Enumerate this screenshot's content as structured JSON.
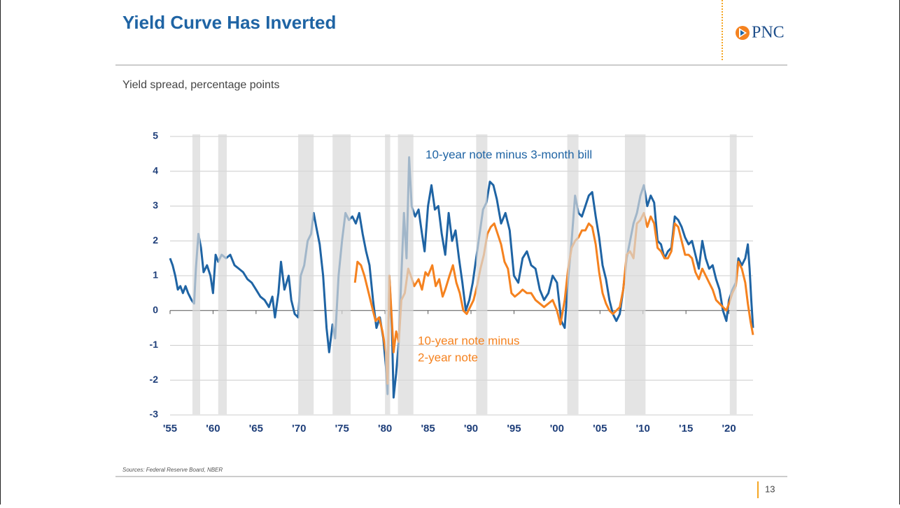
{
  "header": {
    "title": "Yield Curve Has Inverted",
    "logo": "PNC",
    "subtitle": "Yield spread, percentage points"
  },
  "chart_data": {
    "type": "line",
    "xlim": [
      1955,
      2022.8
    ],
    "xticks": [
      {
        "value": 1955,
        "label": "'55"
      },
      {
        "value": 1960,
        "label": "'60"
      },
      {
        "value": 1965,
        "label": "'65"
      },
      {
        "value": 1970,
        "label": "'70"
      },
      {
        "value": 1975,
        "label": "'75"
      },
      {
        "value": 1980,
        "label": "'80"
      },
      {
        "value": 1985,
        "label": "'85"
      },
      {
        "value": 1990,
        "label": "'90"
      },
      {
        "value": 1995,
        "label": "'95"
      },
      {
        "value": 2000,
        "label": "'00"
      },
      {
        "value": 2005,
        "label": "'05"
      },
      {
        "value": 2010,
        "label": "'10"
      },
      {
        "value": 2015,
        "label": "'15"
      },
      {
        "value": 2020,
        "label": "'20"
      }
    ],
    "ylim": [
      -3,
      5
    ],
    "yticks": [
      5,
      4,
      3,
      2,
      1,
      0,
      -1,
      -2,
      -3
    ],
    "grid": true,
    "recessions": [
      [
        1957.6,
        1958.5
      ],
      [
        1960.6,
        1961.6
      ],
      [
        1969.9,
        1971.7
      ],
      [
        1973.9,
        1976.0
      ],
      [
        1980.0,
        1980.6
      ],
      [
        1981.5,
        1983.3
      ],
      [
        1990.6,
        1991.9
      ],
      [
        2001.2,
        2002.5
      ],
      [
        2007.9,
        2010.3
      ],
      [
        2020.1,
        2020.9
      ]
    ],
    "recession_color": "#d9d9d9",
    "annotations": [
      "10-year note minus 3-month bill",
      "10-year note minus",
      "2-year note"
    ],
    "series": [
      {
        "color": "#1f64a4",
        "x": [
          1955.0,
          1955.3,
          1955.6,
          1955.9,
          1956.2,
          1956.5,
          1956.8,
          1957.1,
          1957.5,
          1957.8,
          1958.0,
          1958.3,
          1958.6,
          1958.9,
          1959.3,
          1959.7,
          1960.0,
          1960.3,
          1960.6,
          1961.0,
          1961.5,
          1962.0,
          1962.5,
          1963.0,
          1963.5,
          1964.0,
          1964.5,
          1965.0,
          1965.5,
          1966.0,
          1966.5,
          1966.9,
          1967.2,
          1967.6,
          1967.9,
          1968.3,
          1968.8,
          1969.1,
          1969.5,
          1969.9,
          1970.2,
          1970.6,
          1971.0,
          1971.4,
          1971.7,
          1972.0,
          1972.4,
          1972.8,
          1973.2,
          1973.5,
          1973.9,
          1974.2,
          1974.6,
          1975.0,
          1975.4,
          1975.8,
          1976.2,
          1976.6,
          1977.0,
          1977.4,
          1977.8,
          1978.2,
          1978.6,
          1979.0,
          1979.4,
          1979.8,
          1980.1,
          1980.3,
          1980.5,
          1980.8,
          1981.0,
          1981.3,
          1981.6,
          1981.9,
          1982.2,
          1982.5,
          1982.8,
          1983.1,
          1983.5,
          1983.9,
          1984.3,
          1984.6,
          1985.0,
          1985.4,
          1985.8,
          1986.2,
          1986.6,
          1987.0,
          1987.4,
          1987.8,
          1988.2,
          1988.6,
          1989.0,
          1989.4,
          1989.8,
          1990.2,
          1990.6,
          1991.0,
          1991.4,
          1991.8,
          1992.2,
          1992.6,
          1993.0,
          1993.5,
          1994.0,
          1994.5,
          1995.0,
          1995.5,
          1996.0,
          1996.5,
          1997.0,
          1997.5,
          1998.0,
          1998.5,
          1999.0,
          1999.5,
          2000.0,
          2000.5,
          2000.9,
          2001.3,
          2001.7,
          2002.1,
          2002.5,
          2002.9,
          2003.3,
          2003.7,
          2004.1,
          2004.5,
          2004.9,
          2005.3,
          2005.7,
          2006.1,
          2006.5,
          2006.9,
          2007.3,
          2007.7,
          2008.1,
          2008.5,
          2008.9,
          2009.3,
          2009.7,
          2010.1,
          2010.5,
          2010.9,
          2011.3,
          2011.7,
          2012.1,
          2012.5,
          2012.9,
          2013.3,
          2013.7,
          2014.1,
          2014.5,
          2014.9,
          2015.3,
          2015.7,
          2016.1,
          2016.5,
          2016.9,
          2017.3,
          2017.7,
          2018.1,
          2018.5,
          2018.9,
          2019.3,
          2019.7,
          2020.0,
          2020.4,
          2020.8,
          2021.1,
          2021.5,
          2021.9,
          2022.2,
          2022.4,
          2022.6,
          2022.8
        ],
        "values": [
          1.5,
          1.3,
          1.0,
          0.6,
          0.7,
          0.5,
          0.7,
          0.5,
          0.3,
          0.2,
          1.2,
          2.2,
          1.8,
          1.1,
          1.3,
          1.0,
          0.5,
          1.6,
          1.4,
          1.6,
          1.5,
          1.6,
          1.3,
          1.2,
          1.1,
          0.9,
          0.8,
          0.6,
          0.4,
          0.3,
          0.1,
          0.4,
          -0.2,
          0.5,
          1.4,
          0.6,
          1.0,
          0.3,
          -0.1,
          -0.2,
          1.0,
          1.3,
          2.0,
          2.2,
          2.8,
          2.4,
          1.9,
          1.0,
          -0.5,
          -1.2,
          -0.4,
          -0.8,
          1.0,
          2.0,
          2.8,
          2.6,
          2.7,
          2.5,
          2.8,
          2.2,
          1.7,
          1.3,
          0.3,
          -0.5,
          -0.2,
          -0.8,
          -1.6,
          -2.4,
          1.0,
          -0.5,
          -2.5,
          -1.8,
          -0.9,
          1.0,
          2.8,
          1.5,
          4.4,
          3.0,
          2.7,
          2.9,
          2.2,
          1.7,
          3.0,
          3.6,
          2.9,
          3.0,
          2.2,
          1.6,
          2.8,
          2.0,
          2.3,
          1.5,
          0.8,
          0.0,
          0.3,
          0.8,
          1.5,
          2.2,
          2.9,
          3.1,
          3.7,
          3.6,
          3.2,
          2.5,
          2.8,
          2.3,
          1.0,
          0.8,
          1.5,
          1.7,
          1.3,
          1.2,
          0.6,
          0.3,
          0.5,
          1.0,
          0.8,
          -0.3,
          -0.5,
          0.9,
          2.0,
          3.3,
          2.8,
          2.7,
          3.0,
          3.3,
          3.4,
          2.7,
          2.1,
          1.3,
          0.9,
          0.3,
          -0.1,
          -0.3,
          -0.1,
          0.6,
          1.5,
          2.0,
          2.5,
          2.8,
          3.3,
          3.6,
          3.0,
          3.3,
          3.1,
          2.0,
          1.9,
          1.5,
          1.7,
          1.8,
          2.7,
          2.6,
          2.4,
          2.1,
          1.9,
          2.0,
          1.6,
          1.2,
          2.0,
          1.5,
          1.2,
          1.3,
          0.9,
          0.6,
          0.0,
          -0.3,
          0.3,
          0.6,
          0.8,
          1.5,
          1.3,
          1.5,
          1.9,
          1.2,
          0.3,
          -0.5
        ]
      },
      {
        "color": "#f5821f",
        "x": [
          1976.5,
          1976.8,
          1977.2,
          1977.6,
          1978.0,
          1978.5,
          1978.9,
          1979.3,
          1979.7,
          1980.1,
          1980.3,
          1980.5,
          1980.8,
          1981.0,
          1981.3,
          1981.6,
          1981.9,
          1982.3,
          1982.7,
          1983.0,
          1983.4,
          1983.9,
          1984.3,
          1984.7,
          1985.0,
          1985.5,
          1985.9,
          1986.3,
          1986.7,
          1987.0,
          1987.5,
          1987.9,
          1988.3,
          1988.7,
          1989.1,
          1989.5,
          1989.9,
          1990.3,
          1990.7,
          1991.1,
          1991.5,
          1991.9,
          1992.3,
          1992.7,
          1993.1,
          1993.5,
          1993.9,
          1994.3,
          1994.7,
          1995.1,
          1995.6,
          1996.0,
          1996.5,
          1997.0,
          1997.5,
          1998.0,
          1998.5,
          1999.0,
          1999.5,
          2000.0,
          2000.4,
          2000.9,
          2001.3,
          2001.7,
          2002.1,
          2002.5,
          2002.9,
          2003.3,
          2003.7,
          2004.1,
          2004.5,
          2004.9,
          2005.3,
          2005.7,
          2006.1,
          2006.5,
          2006.9,
          2007.3,
          2007.7,
          2008.1,
          2008.5,
          2008.9,
          2009.3,
          2009.7,
          2010.1,
          2010.5,
          2010.9,
          2011.3,
          2011.7,
          2012.1,
          2012.5,
          2012.9,
          2013.3,
          2013.7,
          2014.1,
          2014.5,
          2014.9,
          2015.3,
          2015.7,
          2016.1,
          2016.5,
          2016.9,
          2017.3,
          2017.7,
          2018.1,
          2018.5,
          2018.9,
          2019.3,
          2019.7,
          2020.0,
          2020.4,
          2020.8,
          2021.1,
          2021.5,
          2021.9,
          2022.2,
          2022.5,
          2022.8
        ],
        "values": [
          0.8,
          1.4,
          1.3,
          1.0,
          0.6,
          0.1,
          -0.3,
          -0.2,
          -0.6,
          -1.2,
          -2.1,
          1.0,
          -0.3,
          -1.2,
          -0.6,
          -0.9,
          0.3,
          0.5,
          1.2,
          1.0,
          0.7,
          0.9,
          0.6,
          1.1,
          1.0,
          1.3,
          0.7,
          0.9,
          0.4,
          0.6,
          1.0,
          1.3,
          0.8,
          0.5,
          0.0,
          -0.1,
          0.1,
          0.3,
          0.7,
          1.2,
          1.6,
          2.2,
          2.4,
          2.5,
          2.2,
          1.9,
          1.4,
          1.2,
          0.5,
          0.4,
          0.5,
          0.6,
          0.5,
          0.5,
          0.3,
          0.2,
          0.1,
          0.2,
          0.3,
          0.0,
          -0.4,
          0.3,
          1.2,
          1.8,
          2.0,
          2.1,
          2.3,
          2.3,
          2.5,
          2.4,
          1.9,
          1.1,
          0.5,
          0.2,
          0.0,
          -0.1,
          0.0,
          0.1,
          0.6,
          1.6,
          1.7,
          1.5,
          2.5,
          2.6,
          2.8,
          2.4,
          2.7,
          2.5,
          1.8,
          1.7,
          1.5,
          1.5,
          1.7,
          2.5,
          2.4,
          2.0,
          1.6,
          1.6,
          1.5,
          1.1,
          0.9,
          1.2,
          1.0,
          0.8,
          0.6,
          0.3,
          0.2,
          0.1,
          0.0,
          0.2,
          0.5,
          0.7,
          1.4,
          1.2,
          0.8,
          0.2,
          -0.3,
          -0.7
        ]
      }
    ]
  },
  "footer": {
    "source": "Sources: Federal  Reserve Board, NBER",
    "page": "13"
  }
}
